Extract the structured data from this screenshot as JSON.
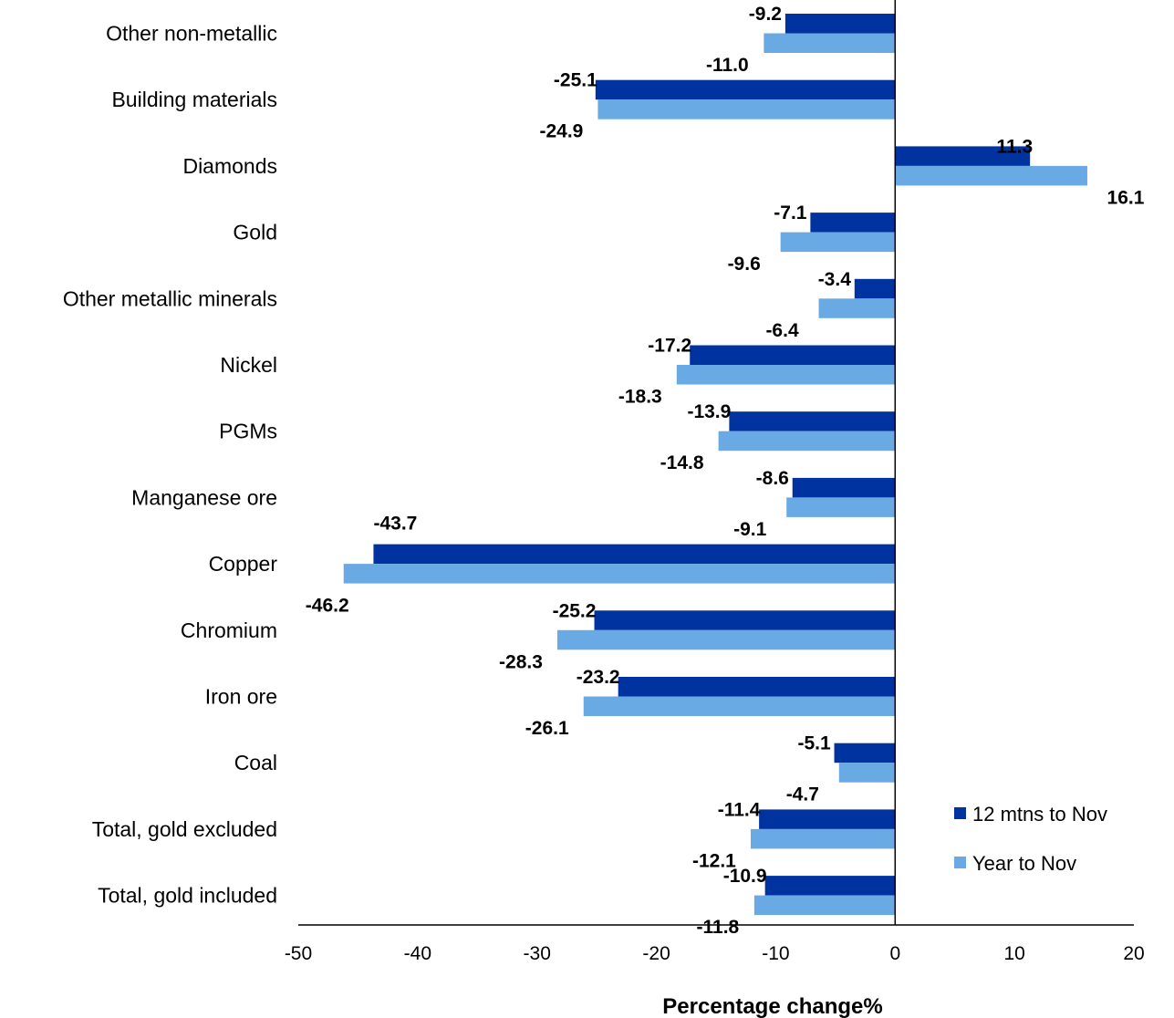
{
  "chart_data": {
    "type": "bar",
    "orientation": "horizontal",
    "title": "",
    "xlabel": "Percentage change%",
    "ylabel": "",
    "xlim": [
      -50,
      20
    ],
    "xticks": [
      -50,
      -40,
      -30,
      -20,
      -10,
      0,
      10,
      20
    ],
    "grid": false,
    "legend_position": "bottom-right",
    "categories": [
      "Other non-metallic",
      "Building materials",
      "Diamonds",
      "Gold",
      "Other metallic minerals",
      "Nickel",
      "PGMs",
      "Manganese ore",
      "Copper",
      "Chromium",
      "Iron ore",
      "Coal",
      "Total, gold excluded",
      "Total, gold included"
    ],
    "series": [
      {
        "name": "12 mtns to Nov",
        "color": "#0033a0",
        "values": [
          -9.2,
          -25.1,
          11.3,
          -7.1,
          -3.4,
          -17.2,
          -13.9,
          -8.6,
          -43.7,
          -25.2,
          -23.2,
          -5.1,
          -11.4,
          -10.9
        ],
        "labels": [
          "-9.2",
          "-25.1",
          "11.3",
          "-7.1",
          "-3.4",
          "-17.2",
          "-13.9",
          "-8.6",
          "-43.7",
          "-25.2",
          "-23.2",
          "-5.1",
          "-11.4",
          "-10.9"
        ]
      },
      {
        "name": "Year to Nov",
        "color": "#6aaae4",
        "values": [
          -11.0,
          -24.9,
          16.1,
          -9.6,
          -6.4,
          -18.3,
          -14.8,
          -9.1,
          -46.2,
          -28.3,
          -26.1,
          -4.7,
          -12.1,
          -11.8
        ],
        "labels": [
          "-11.0",
          "-24.9",
          "16.1",
          "-9.6",
          "-6.4",
          "-18.3",
          "-14.8",
          "-9.1",
          "-46.2",
          "-28.3",
          "-26.1",
          "-4.7",
          "-12.1",
          "-11.8"
        ]
      }
    ]
  }
}
